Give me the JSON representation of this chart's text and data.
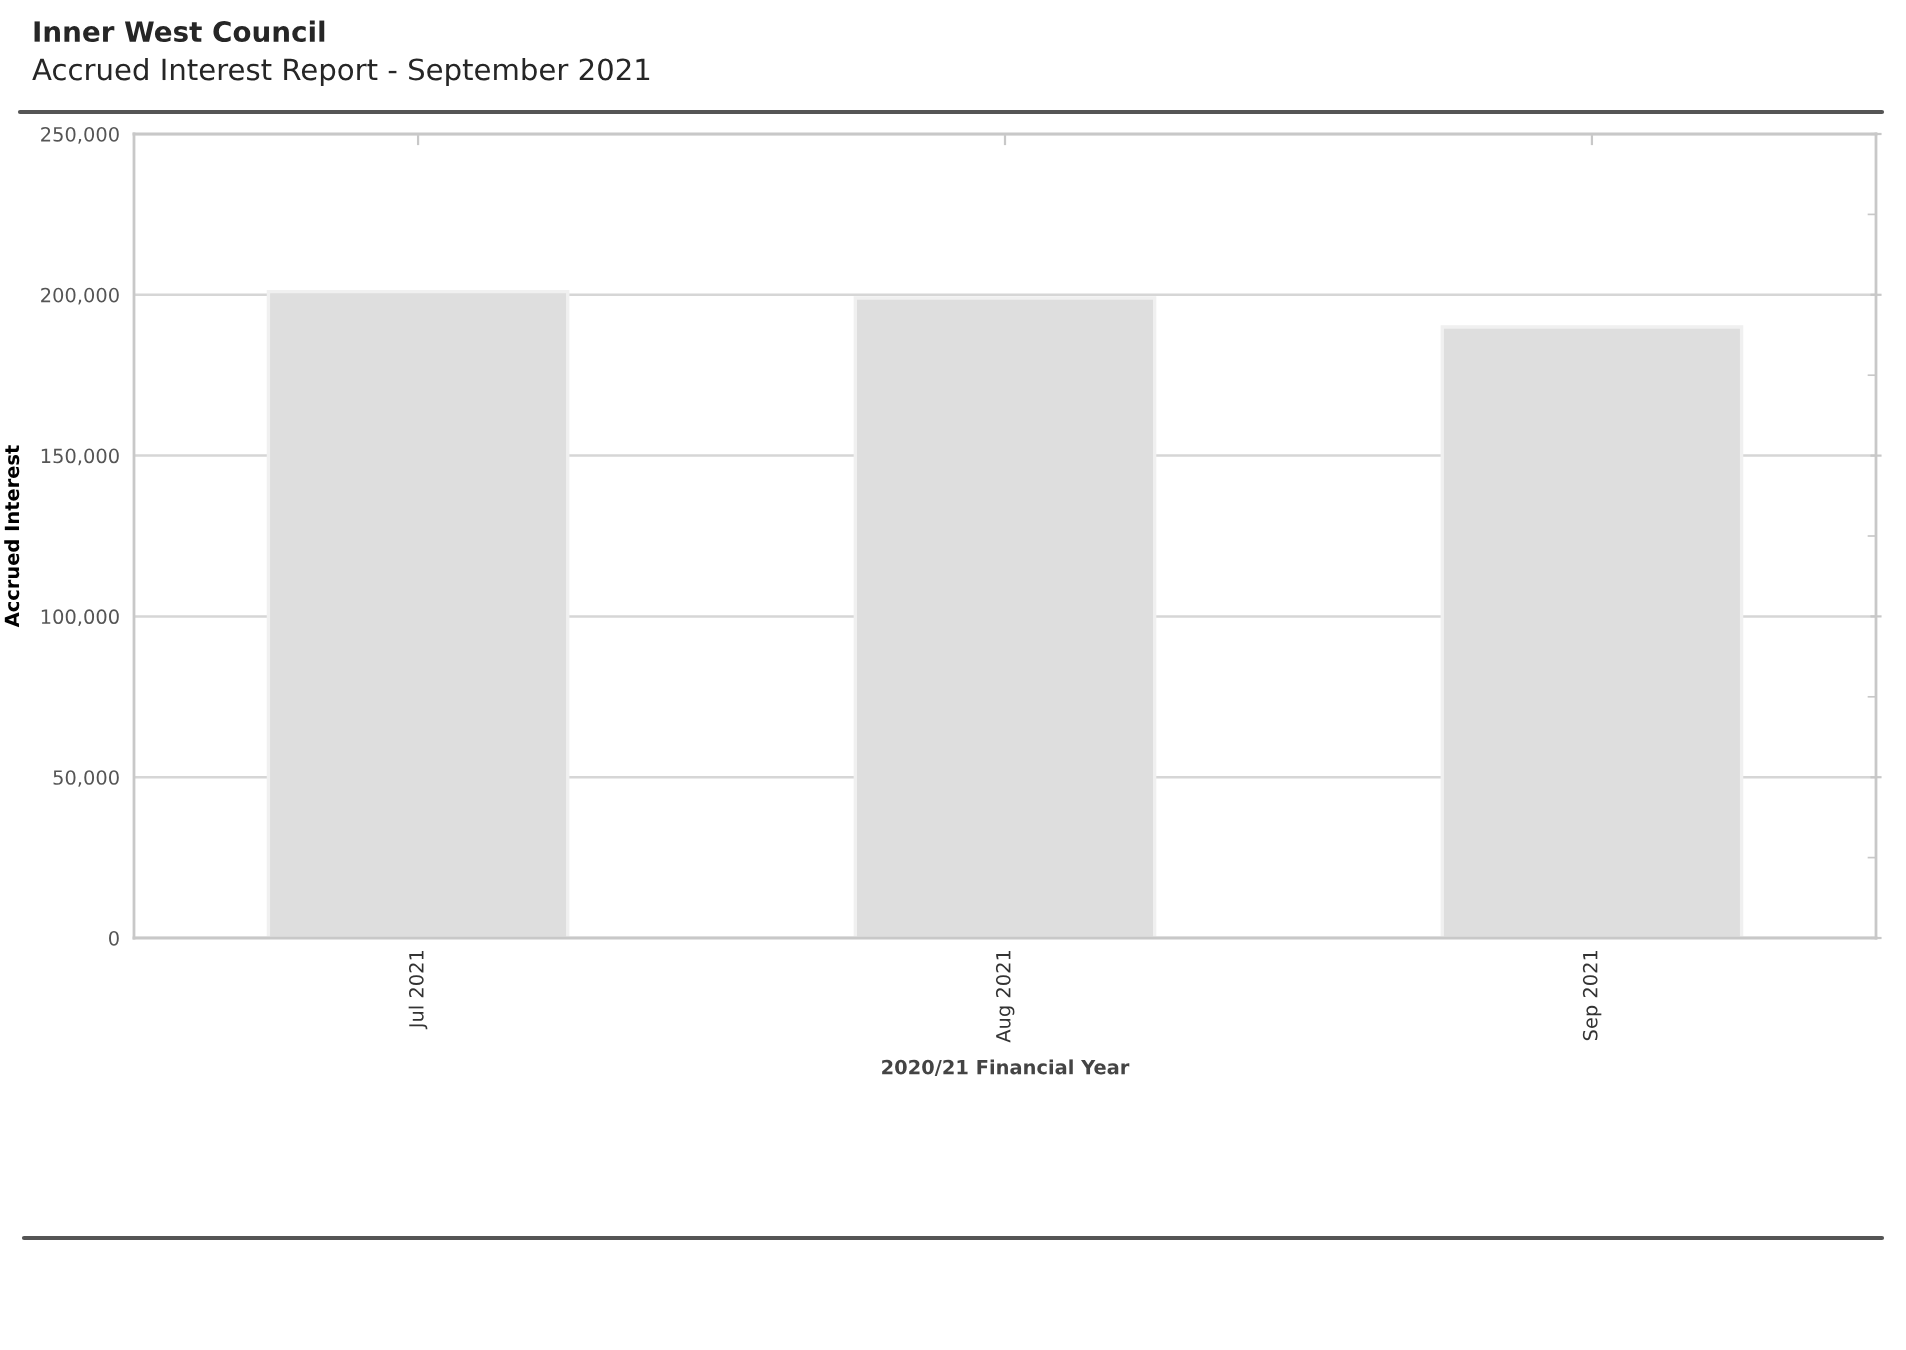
{
  "chart_data": {
    "type": "bar",
    "title": "Inner West Council",
    "subtitle": "Accrued Interest Report - September 2021",
    "xlabel": "2020/21 Financial Year",
    "ylabel": "Accrued Interest",
    "categories": [
      "Jul 2021",
      "Aug 2021",
      "Sep 2021"
    ],
    "values": [
      201000,
      199000,
      190000
    ],
    "color": "#dedede",
    "ylim": [
      0,
      250000
    ],
    "yticks": [
      {
        "value": 0,
        "label": "0"
      },
      {
        "value": 25000,
        "label": null
      },
      {
        "value": 50000,
        "label": "50,000"
      },
      {
        "value": 75000,
        "label": null
      },
      {
        "value": 100000,
        "label": "100,000"
      },
      {
        "value": 125000,
        "label": null
      },
      {
        "value": 150000,
        "label": "150,000"
      },
      {
        "value": 175000,
        "label": null
      },
      {
        "value": 200000,
        "label": "200,000"
      },
      {
        "value": 225000,
        "label": null
      },
      {
        "value": 250000,
        "label": "250,000"
      }
    ],
    "grid": "y"
  }
}
